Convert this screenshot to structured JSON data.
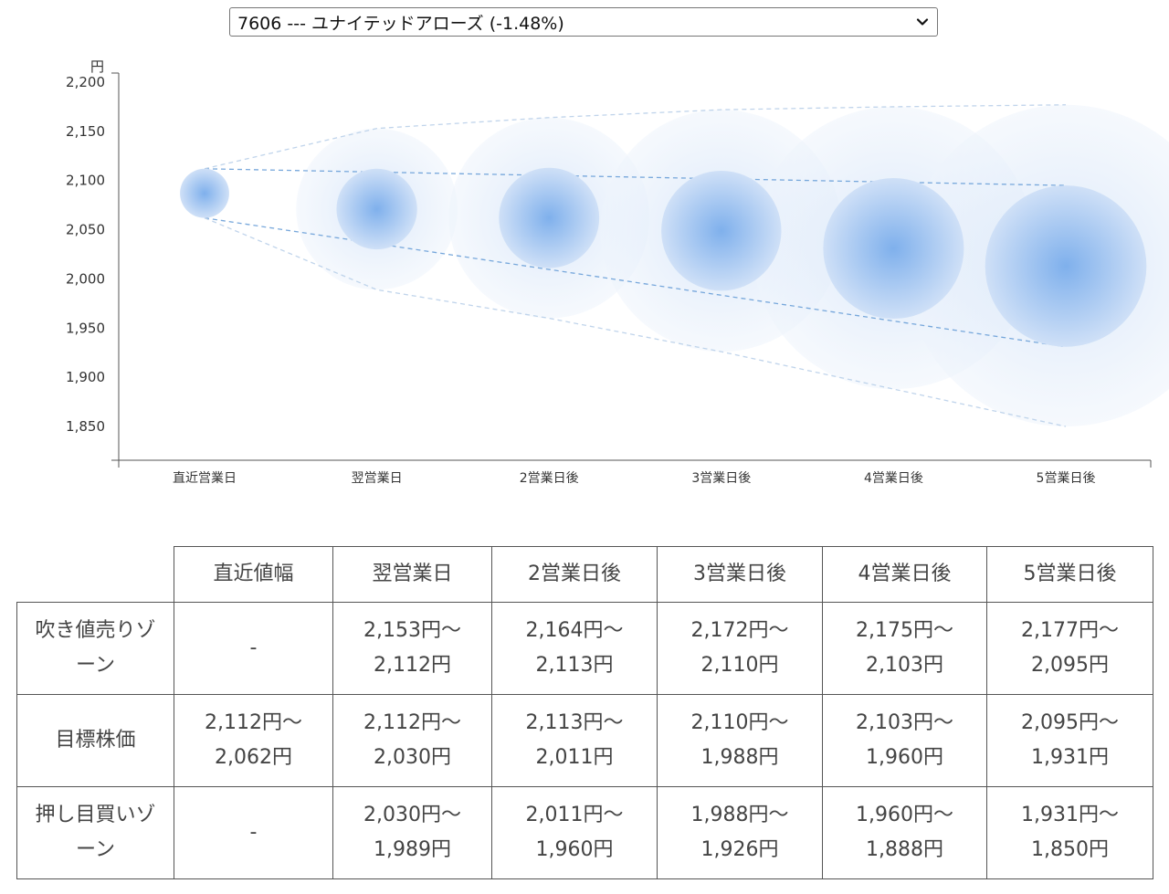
{
  "selector": {
    "selected": "7606 --- ユナイテッドアローズ (-1.48%)",
    "icon": "chevron-down-icon"
  },
  "chart_data": {
    "type": "scatter",
    "unit_label": "円",
    "categories": [
      "直近営業日",
      "翌営業日",
      "2営業日後",
      "3営業日後",
      "4営業日後",
      "5営業日後"
    ],
    "ylim": [
      1850,
      2200
    ],
    "yticks": [
      "2,200",
      "2,150",
      "2,100",
      "2,050",
      "2,000",
      "1,950",
      "1,900",
      "1,850"
    ],
    "ytick_values": [
      2200,
      2150,
      2100,
      2050,
      2000,
      1950,
      1900,
      1850
    ],
    "series": [
      {
        "center": [
          2087,
          2071,
          2062,
          2049,
          2031,
          2013
        ],
        "target_high": [
          2112,
          2112,
          2113,
          2110,
          2103,
          2095
        ],
        "target_low": [
          2062,
          2030,
          2011,
          1988,
          1960,
          1931
        ],
        "sell_high": [
          null,
          2153,
          2164,
          2172,
          2175,
          2177
        ],
        "buy_low": [
          null,
          1989,
          1960,
          1926,
          1888,
          1850
        ]
      }
    ],
    "colors": {
      "bubble": "#8db8ee",
      "band_inner": "#6a9fd8",
      "band_outer": "#b9cfe9"
    },
    "grid": false
  },
  "table": {
    "headers": [
      "",
      "直近値幅",
      "翌営業日",
      "2営業日後",
      "3営業日後",
      "4営業日後",
      "5営業日後"
    ],
    "rows": [
      {
        "label": [
          "吹き値売りゾ",
          "ーン"
        ],
        "cells": [
          [
            "-"
          ],
          [
            "2,153円〜",
            "2,112円"
          ],
          [
            "2,164円〜",
            "2,113円"
          ],
          [
            "2,172円〜",
            "2,110円"
          ],
          [
            "2,175円〜",
            "2,103円"
          ],
          [
            "2,177円〜",
            "2,095円"
          ]
        ]
      },
      {
        "label": [
          "目標株価"
        ],
        "cells": [
          [
            "2,112円〜",
            "2,062円"
          ],
          [
            "2,112円〜",
            "2,030円"
          ],
          [
            "2,113円〜",
            "2,011円"
          ],
          [
            "2,110円〜",
            "1,988円"
          ],
          [
            "2,103円〜",
            "1,960円"
          ],
          [
            "2,095円〜",
            "1,931円"
          ]
        ]
      },
      {
        "label": [
          "押し目買いゾ",
          "ーン"
        ],
        "cells": [
          [
            "-"
          ],
          [
            "2,030円〜",
            "1,989円"
          ],
          [
            "2,011円〜",
            "1,960円"
          ],
          [
            "1,988円〜",
            "1,926円"
          ],
          [
            "1,960円〜",
            "1,888円"
          ],
          [
            "1,931円〜",
            "1,850円"
          ]
        ]
      }
    ]
  }
}
